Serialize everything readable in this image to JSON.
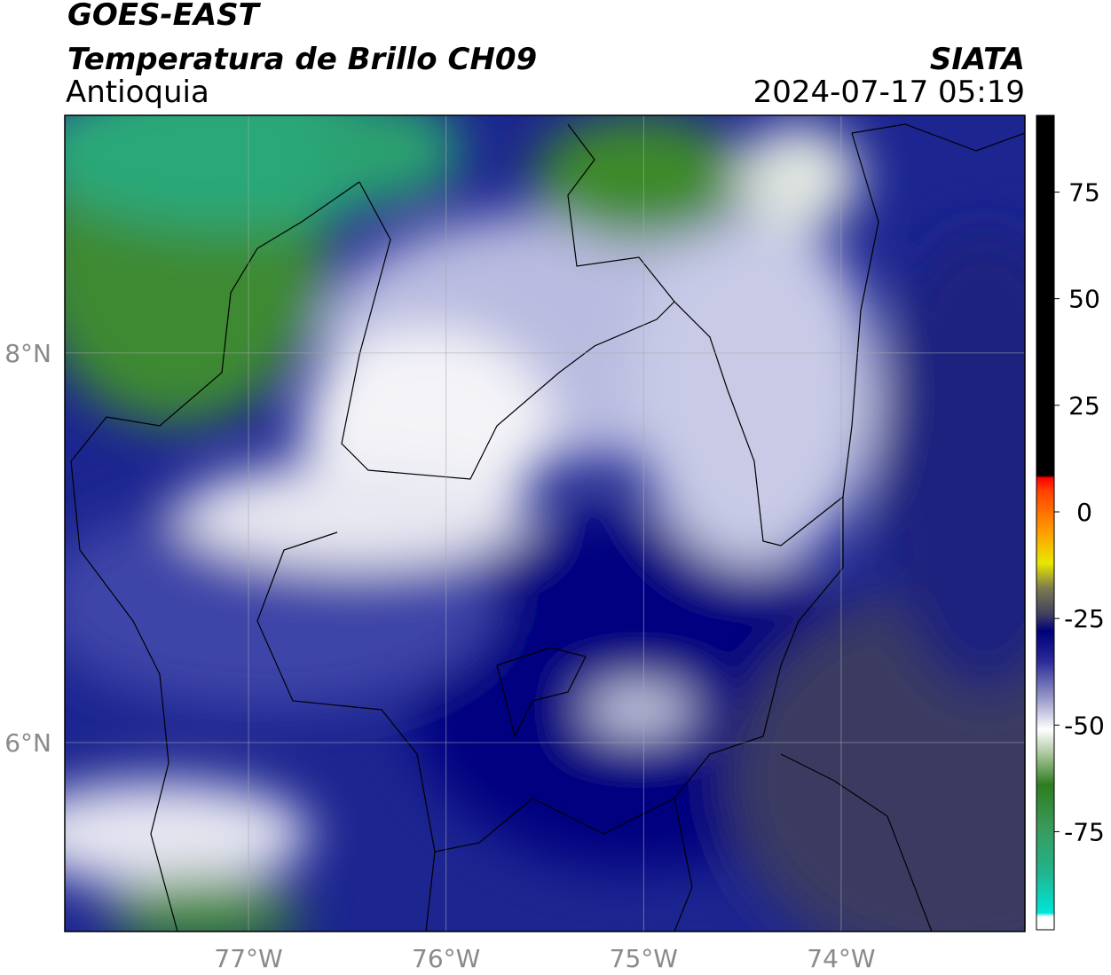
{
  "header": {
    "title": "GOES-EAST",
    "subtitle": "Temperatura de Brillo CH09",
    "region": "Antioquia",
    "source": "SIATA",
    "datetime": "2024-07-17 05:19"
  },
  "map": {
    "lon_range": [
      -77.93,
      -73.07
    ],
    "lat_range": [
      5.03,
      9.22
    ],
    "grid": true,
    "lon_ticks": [
      {
        "value": -77,
        "label": "77°W"
      },
      {
        "value": -76,
        "label": "76°W"
      },
      {
        "value": -75,
        "label": "75°W"
      },
      {
        "value": -74,
        "label": "74°W"
      }
    ],
    "lat_ticks": [
      {
        "value": 8,
        "label": "8°N"
      },
      {
        "value": 6,
        "label": "6°N"
      }
    ]
  },
  "colorbar": {
    "range": [
      -98,
      93
    ],
    "ticks": [
      75,
      50,
      25,
      0,
      -25,
      -50,
      -75
    ],
    "colormap": [
      {
        "value": -98,
        "color": "#ffffff"
      },
      {
        "value": -95,
        "color": "#ffffff"
      },
      {
        "value": -94,
        "color": "#00e5d8"
      },
      {
        "value": -84,
        "color": "#22b28a"
      },
      {
        "value": -74,
        "color": "#3a9a5a"
      },
      {
        "value": -64,
        "color": "#2e7d1e"
      },
      {
        "value": -57,
        "color": "#a8c49a"
      },
      {
        "value": -51,
        "color": "#ffffff"
      },
      {
        "value": -44,
        "color": "#9c9ccc"
      },
      {
        "value": -35,
        "color": "#2a2a98"
      },
      {
        "value": -28,
        "color": "#00007a"
      },
      {
        "value": -24,
        "color": "#404060"
      },
      {
        "value": -18,
        "color": "#7a7a50"
      },
      {
        "value": -12,
        "color": "#e8e800"
      },
      {
        "value": -5,
        "color": "#ffa000"
      },
      {
        "value": 5,
        "color": "#ff4000"
      },
      {
        "value": 8,
        "color": "#ff0000"
      },
      {
        "value": 8.5,
        "color": "#000000"
      },
      {
        "value": 93,
        "color": "#000000"
      }
    ]
  }
}
